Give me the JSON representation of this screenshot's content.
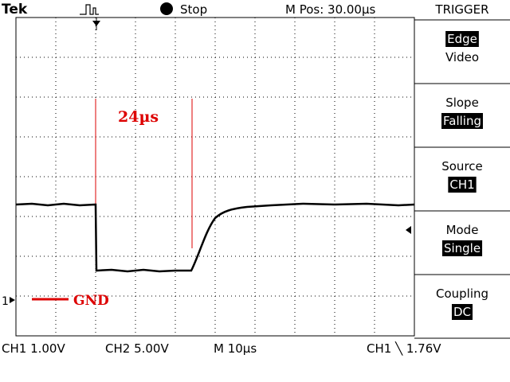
{
  "header": {
    "brand": "Tek",
    "status": "Stop",
    "position": "M Pos: 30.00µs",
    "menu_title": "TRIGGER"
  },
  "menu": [
    {
      "lines": [
        "Edge",
        "Video"
      ]
    },
    {
      "lines": [
        "Slope",
        "Falling"
      ]
    },
    {
      "lines": [
        "Source",
        "CH1"
      ]
    },
    {
      "lines": [
        "Mode",
        "Single"
      ]
    },
    {
      "lines": [
        "Coupling",
        "DC"
      ]
    }
  ],
  "annotations": {
    "cursor_delta": "24µs",
    "ground": "GND",
    "channel_marker": "1"
  },
  "footer": {
    "ch1_scale": "CH1 1.00V",
    "ch2_scale": "CH2 5.00V",
    "timebase": "M 10µs",
    "trigger": "CH1 ╲ 1.76V"
  }
}
